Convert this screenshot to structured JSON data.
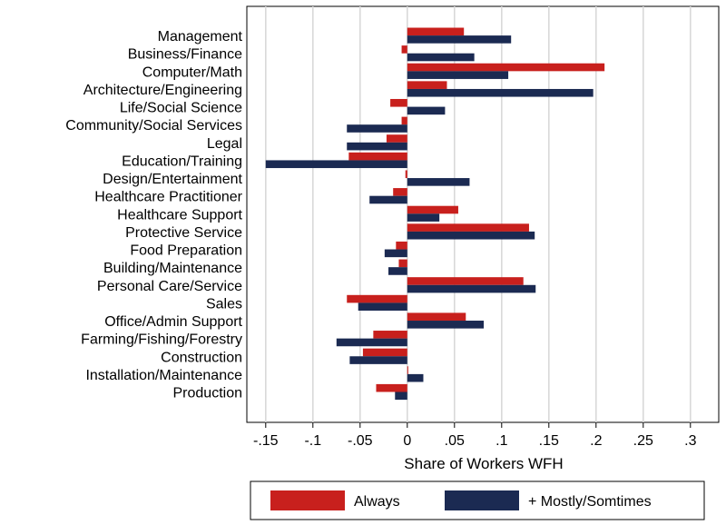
{
  "chart_data": {
    "type": "bar",
    "orientation": "horizontal",
    "xlabel": "Share of Workers WFH",
    "xlim": [
      -0.17,
      0.33
    ],
    "xticks": [
      -0.15,
      -0.1,
      -0.05,
      0,
      0.05,
      0.1,
      0.15,
      0.2,
      0.25,
      0.3
    ],
    "xtick_labels": [
      "-.15",
      "-.1",
      "-.05",
      "0",
      ".05",
      ".1",
      ".15",
      ".2",
      ".25",
      ".3"
    ],
    "grid": true,
    "legend_position": "bottom",
    "categories": [
      "Management",
      "Business/Finance",
      "Computer/Math",
      "Architecture/Engineering",
      "Life/Social Science",
      "Community/Social Services",
      "Legal",
      "Education/Training",
      "Design/Entertainment",
      "Healthcare Practitioner",
      "Healthcare Support",
      "Protective Service",
      "Food Preparation",
      "Building/Maintenance",
      "Personal Care/Service",
      "Sales",
      "Office/Admin Support",
      "Farming/Fishing/Forestry",
      "Construction",
      "Installation/Maintenance",
      "Production"
    ],
    "series": [
      {
        "name": "Always",
        "color": "#c8201d",
        "values": [
          0.06,
          -0.006,
          0.209,
          0.042,
          -0.018,
          -0.006,
          -0.022,
          -0.062,
          -0.002,
          -0.015,
          0.054,
          0.129,
          -0.012,
          -0.009,
          0.123,
          -0.064,
          0.062,
          -0.036,
          -0.047,
          0.001,
          -0.033
        ]
      },
      {
        "name": "+ Mostly/Somtimes",
        "color": "#1b2a52",
        "values": [
          0.11,
          0.071,
          0.107,
          0.197,
          0.04,
          -0.064,
          -0.064,
          -0.15,
          0.066,
          -0.04,
          0.034,
          0.135,
          -0.024,
          -0.02,
          0.136,
          -0.052,
          0.081,
          -0.075,
          -0.061,
          0.017,
          -0.013
        ]
      }
    ]
  }
}
